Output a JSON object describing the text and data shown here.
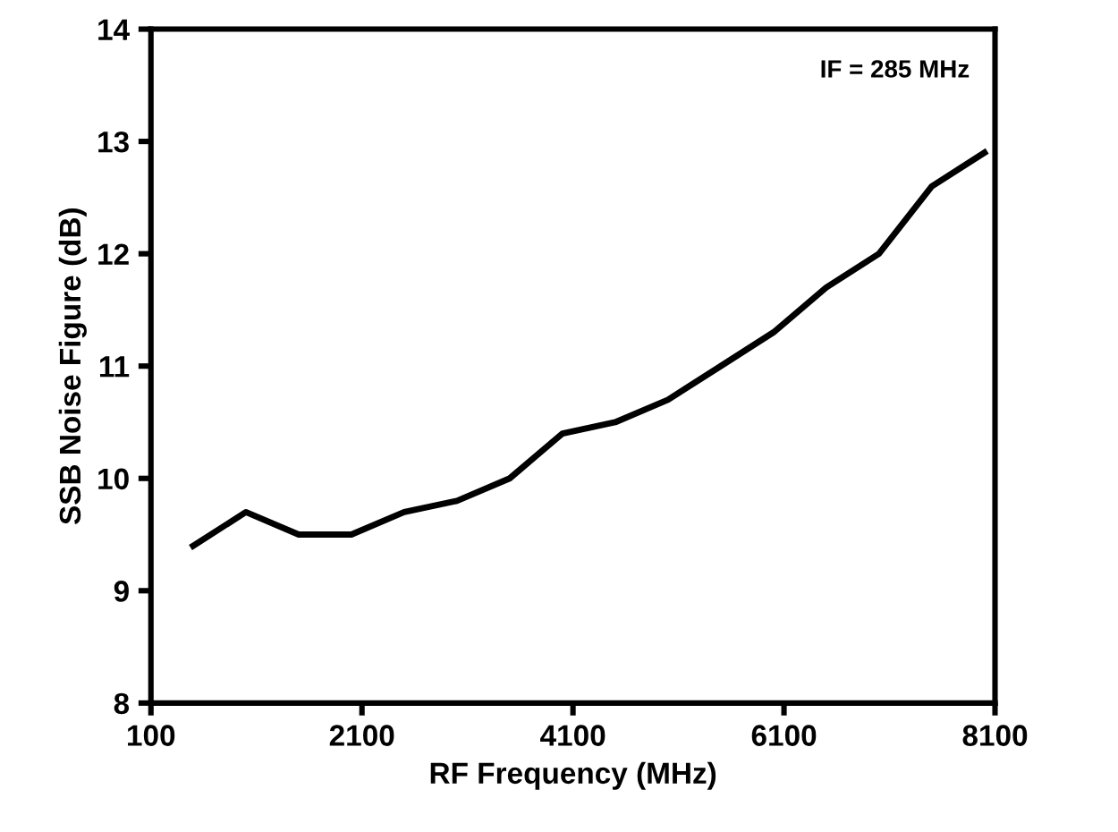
{
  "chart_data": {
    "type": "line",
    "xlabel": "RF Frequency (MHz)",
    "ylabel": "SSB Noise Figure (dB)",
    "annotations": [
      "IF = 285 MHz"
    ],
    "x": [
      500,
      1000,
      1500,
      2000,
      2500,
      3000,
      3500,
      4000,
      4500,
      5000,
      5500,
      6000,
      6500,
      7000,
      7500,
      8000
    ],
    "series": [
      {
        "color": "#000000",
        "values": [
          9.4,
          9.7,
          9.5,
          9.5,
          9.7,
          9.8,
          10.0,
          10.4,
          10.5,
          10.7,
          11.0,
          11.3,
          11.7,
          12.0,
          12.6,
          12.9
        ]
      }
    ],
    "xlim": [
      100,
      8100
    ],
    "xticks": [
      100,
      2100,
      4100,
      6100,
      8100
    ],
    "ylim": [
      8,
      14
    ],
    "yticks": [
      8,
      9,
      10,
      11,
      12,
      13,
      14
    ],
    "grid": false,
    "marker": "none",
    "line_style": "solid"
  }
}
